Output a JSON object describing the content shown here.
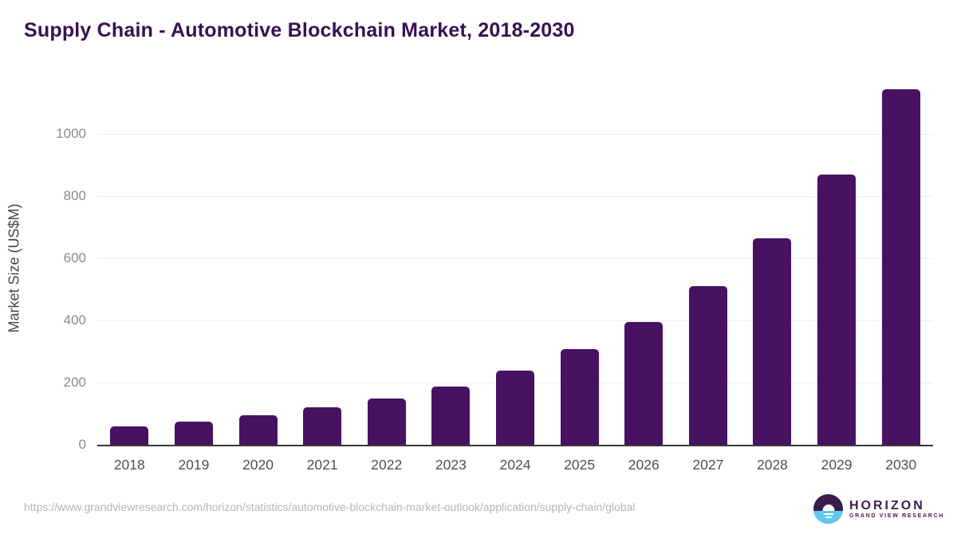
{
  "title": "Supply Chain - Automotive Blockchain Market, 2018-2030",
  "chart_data": {
    "type": "bar",
    "title": "Supply Chain - Automotive Blockchain Market, 2018-2030",
    "xlabel": "",
    "ylabel": "Market Size (US$M)",
    "categories": [
      "2018",
      "2019",
      "2020",
      "2021",
      "2022",
      "2023",
      "2024",
      "2025",
      "2026",
      "2027",
      "2028",
      "2029",
      "2030"
    ],
    "values": [
      62,
      78,
      98,
      122,
      151,
      190,
      241,
      310,
      397,
      512,
      667,
      871,
      1145
    ],
    "yticks": [
      0,
      200,
      400,
      600,
      800,
      1000
    ],
    "ylim": [
      0,
      1150
    ],
    "grid": "horizontal",
    "legend": "none",
    "bar_color": "#481162"
  },
  "footer": {
    "source_url": "https://www.grandviewresearch.com/horizon/statistics/automotive-blockchain-market-outlook/application/supply-chain/global",
    "logo": {
      "name": "HORIZON",
      "subtitle": "GRAND VIEW RESEARCH"
    }
  },
  "colors": {
    "bar": "#481162",
    "title": "#371153",
    "ytick_label": "#8a8a8a",
    "xtick_label": "#4f4f4f",
    "gridline": "#ededed",
    "axis_line": "#383838",
    "url_text": "#b5b5b5",
    "logo_purple": "#3a1c4f",
    "logo_blue": "#5fc8f0"
  }
}
